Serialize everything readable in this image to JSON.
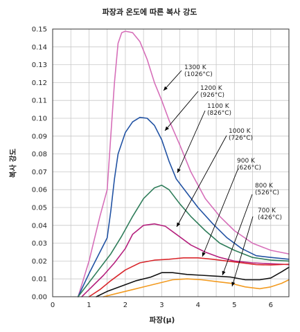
{
  "chart_data": {
    "type": "line",
    "title": "파장과 온도에 따른 복사 강도",
    "xlabel": "파장(μ)",
    "ylabel": "복사 강도",
    "xlim": [
      0,
      6.5
    ],
    "ylim": [
      0,
      0.15
    ],
    "xticks": [
      "0",
      "1",
      "2",
      "3",
      "4",
      "5",
      "6"
    ],
    "yticks": [
      "0.00",
      "0.01",
      "0.02",
      "0.03",
      "0.04",
      "0.05",
      "0.06",
      "0.07",
      "0.08",
      "0.09",
      "0.10",
      "0.11",
      "0.12",
      "0.13",
      "0.14",
      "0.15"
    ],
    "grid": true,
    "series": [
      {
        "name_lines": [
          "1300 K",
          "(1026°C)"
        ],
        "color": "#d66fb9",
        "points": [
          [
            0.7,
            0
          ],
          [
            1.0,
            0.02
          ],
          [
            1.3,
            0.045
          ],
          [
            1.5,
            0.06
          ],
          [
            1.6,
            0.09
          ],
          [
            1.7,
            0.12
          ],
          [
            1.8,
            0.142
          ],
          [
            1.9,
            0.148
          ],
          [
            2.0,
            0.1488
          ],
          [
            2.2,
            0.148
          ],
          [
            2.4,
            0.143
          ],
          [
            2.6,
            0.133
          ],
          [
            2.8,
            0.12
          ],
          [
            3.0,
            0.11
          ],
          [
            3.2,
            0.099
          ],
          [
            3.5,
            0.085
          ],
          [
            3.8,
            0.07
          ],
          [
            4.2,
            0.055
          ],
          [
            4.6,
            0.045
          ],
          [
            5.0,
            0.037
          ],
          [
            5.5,
            0.03
          ],
          [
            6.0,
            0.026
          ],
          [
            6.5,
            0.024
          ]
        ]
      },
      {
        "name_lines": [
          "1200 K",
          "(926°C)"
        ],
        "color": "#2152a3",
        "points": [
          [
            0.7,
            0
          ],
          [
            1.0,
            0.013
          ],
          [
            1.3,
            0.025
          ],
          [
            1.5,
            0.033
          ],
          [
            1.6,
            0.048
          ],
          [
            1.7,
            0.066
          ],
          [
            1.8,
            0.08
          ],
          [
            2.0,
            0.092
          ],
          [
            2.2,
            0.098
          ],
          [
            2.4,
            0.1005
          ],
          [
            2.6,
            0.1
          ],
          [
            2.8,
            0.096
          ],
          [
            3.0,
            0.088
          ],
          [
            3.2,
            0.076
          ],
          [
            3.4,
            0.066
          ],
          [
            3.7,
            0.058
          ],
          [
            4.0,
            0.05
          ],
          [
            4.4,
            0.041
          ],
          [
            4.8,
            0.033
          ],
          [
            5.2,
            0.027
          ],
          [
            5.6,
            0.023
          ],
          [
            6.0,
            0.022
          ],
          [
            6.5,
            0.021
          ]
        ]
      },
      {
        "name_lines": [
          "1100 K",
          "(826°C)"
        ],
        "color": "#2f7d5a",
        "points": [
          [
            0.7,
            0
          ],
          [
            1.0,
            0.008
          ],
          [
            1.3,
            0.016
          ],
          [
            1.6,
            0.024
          ],
          [
            1.9,
            0.034
          ],
          [
            2.2,
            0.045
          ],
          [
            2.5,
            0.055
          ],
          [
            2.8,
            0.061
          ],
          [
            3.0,
            0.0625
          ],
          [
            3.2,
            0.06
          ],
          [
            3.5,
            0.052
          ],
          [
            3.8,
            0.045
          ],
          [
            4.2,
            0.037
          ],
          [
            4.6,
            0.03
          ],
          [
            5.0,
            0.026
          ],
          [
            5.5,
            0.022
          ],
          [
            6.0,
            0.0205
          ],
          [
            6.5,
            0.02
          ]
        ]
      },
      {
        "name_lines": [
          "1000 K",
          "(726°C)"
        ],
        "color": "#b5207d",
        "points": [
          [
            0.8,
            0
          ],
          [
            1.1,
            0.006
          ],
          [
            1.4,
            0.012
          ],
          [
            1.7,
            0.019
          ],
          [
            2.0,
            0.027
          ],
          [
            2.2,
            0.035
          ],
          [
            2.5,
            0.04
          ],
          [
            2.8,
            0.0408
          ],
          [
            3.1,
            0.0395
          ],
          [
            3.4,
            0.035
          ],
          [
            3.8,
            0.029
          ],
          [
            4.2,
            0.025
          ],
          [
            4.6,
            0.022
          ],
          [
            5.0,
            0.02
          ],
          [
            5.5,
            0.019
          ],
          [
            6.0,
            0.0185
          ],
          [
            6.5,
            0.018
          ]
        ]
      },
      {
        "name_lines": [
          "900 K",
          "(626°C)"
        ],
        "color": "#d9262b",
        "points": [
          [
            1.0,
            0
          ],
          [
            1.3,
            0.004
          ],
          [
            1.6,
            0.009
          ],
          [
            2.0,
            0.015
          ],
          [
            2.4,
            0.019
          ],
          [
            2.8,
            0.0205
          ],
          [
            3.2,
            0.021
          ],
          [
            3.6,
            0.0218
          ],
          [
            4.0,
            0.0218
          ],
          [
            4.4,
            0.021
          ],
          [
            4.8,
            0.02
          ],
          [
            5.2,
            0.019
          ],
          [
            5.6,
            0.018
          ],
          [
            6.0,
            0.0178
          ],
          [
            6.5,
            0.0182
          ]
        ]
      },
      {
        "name_lines": [
          "800 K",
          "(526°C)"
        ],
        "color": "#111111",
        "points": [
          [
            1.2,
            0
          ],
          [
            1.5,
            0.003
          ],
          [
            1.9,
            0.006
          ],
          [
            2.3,
            0.009
          ],
          [
            2.7,
            0.011
          ],
          [
            3.0,
            0.0135
          ],
          [
            3.3,
            0.0135
          ],
          [
            3.7,
            0.0125
          ],
          [
            4.1,
            0.012
          ],
          [
            4.5,
            0.0115
          ],
          [
            4.9,
            0.011
          ],
          [
            5.3,
            0.0095
          ],
          [
            5.7,
            0.0095
          ],
          [
            6.0,
            0.0105
          ],
          [
            6.3,
            0.014
          ],
          [
            6.5,
            0.0165
          ]
        ]
      },
      {
        "name_lines": [
          "700 K",
          "(426°C)"
        ],
        "color": "#f29a1f",
        "points": [
          [
            1.4,
            0
          ],
          [
            1.8,
            0.002
          ],
          [
            2.2,
            0.004
          ],
          [
            2.6,
            0.006
          ],
          [
            3.0,
            0.008
          ],
          [
            3.3,
            0.0095
          ],
          [
            3.7,
            0.01
          ],
          [
            4.1,
            0.0095
          ],
          [
            4.5,
            0.0085
          ],
          [
            4.9,
            0.0075
          ],
          [
            5.3,
            0.0055
          ],
          [
            5.7,
            0.0045
          ],
          [
            6.0,
            0.0055
          ],
          [
            6.3,
            0.0075
          ],
          [
            6.5,
            0.0095
          ]
        ]
      }
    ]
  }
}
